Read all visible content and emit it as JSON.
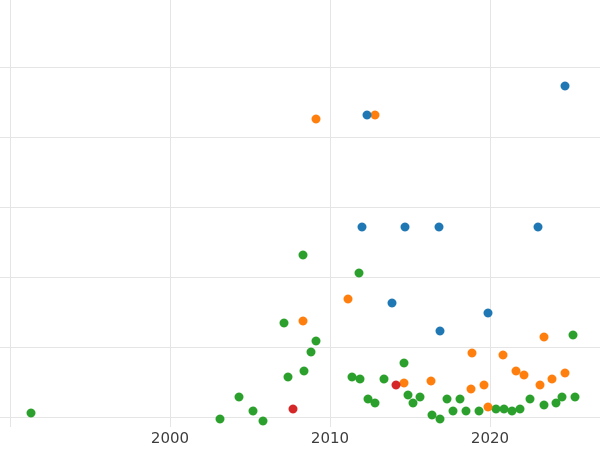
{
  "chart_data": {
    "type": "scatter",
    "title": "",
    "xlabel": "",
    "ylabel": "",
    "x_ticks": [
      2000,
      2010,
      2020
    ],
    "x_gridlines": [
      1990,
      2000,
      2010,
      2020
    ],
    "y_gridlines": [
      0,
      10,
      20,
      30,
      40,
      50
    ],
    "xlim": [
      1989.375,
      2026.875
    ],
    "ylim": [
      -1.43,
      59.57
    ],
    "grid": true,
    "legend": "none",
    "style": {
      "background_color": "#ffffff",
      "grid_color": "#e5e5e5",
      "tick_label_color": "#3d3d3d"
    },
    "series": [
      {
        "name": "green",
        "color": "#2ca02c",
        "points": [
          [
            1991.3,
            0.6
          ],
          [
            2003.1,
            -0.3
          ],
          [
            2004.3,
            2.9
          ],
          [
            2005.2,
            0.9
          ],
          [
            2005.8,
            -0.6
          ],
          [
            2007.1,
            13.4
          ],
          [
            2007.4,
            5.7
          ],
          [
            2008.3,
            23.1
          ],
          [
            2008.4,
            6.6
          ],
          [
            2008.8,
            9.3
          ],
          [
            2009.1,
            10.9
          ],
          [
            2011.4,
            5.7
          ],
          [
            2011.8,
            20.6
          ],
          [
            2011.9,
            5.4
          ],
          [
            2012.4,
            2.6
          ],
          [
            2012.8,
            2.0
          ],
          [
            2013.4,
            5.4
          ],
          [
            2014.6,
            7.7
          ],
          [
            2014.9,
            3.1
          ],
          [
            2015.2,
            2.0
          ],
          [
            2015.6,
            2.9
          ],
          [
            2016.4,
            0.3
          ],
          [
            2016.9,
            -0.3
          ],
          [
            2017.3,
            2.6
          ],
          [
            2017.7,
            0.9
          ],
          [
            2018.1,
            2.6
          ],
          [
            2018.5,
            0.9
          ],
          [
            2019.3,
            0.9
          ],
          [
            2020.4,
            1.1
          ],
          [
            2020.9,
            1.1
          ],
          [
            2021.4,
            0.9
          ],
          [
            2021.9,
            1.1
          ],
          [
            2022.5,
            2.6
          ],
          [
            2023.4,
            1.7
          ],
          [
            2024.1,
            2.0
          ],
          [
            2024.5,
            2.9
          ],
          [
            2025.2,
            11.7
          ],
          [
            2025.3,
            2.9
          ]
        ]
      },
      {
        "name": "orange",
        "color": "#ff7f0e",
        "points": [
          [
            2009.1,
            42.6
          ],
          [
            2012.8,
            43.1
          ],
          [
            2011.1,
            16.9
          ],
          [
            2008.3,
            13.7
          ],
          [
            2023.4,
            11.4
          ],
          [
            2018.9,
            9.1
          ],
          [
            2020.8,
            8.9
          ],
          [
            2021.6,
            6.6
          ],
          [
            2024.7,
            6.3
          ],
          [
            2022.1,
            6.0
          ],
          [
            2023.9,
            5.4
          ],
          [
            2016.3,
            5.1
          ],
          [
            2014.6,
            4.9
          ],
          [
            2019.6,
            4.6
          ],
          [
            2023.1,
            4.6
          ],
          [
            2018.8,
            4.0
          ],
          [
            2019.9,
            1.4
          ]
        ]
      },
      {
        "name": "red",
        "color": "#d62728",
        "points": [
          [
            2007.7,
            1.1
          ],
          [
            2014.1,
            4.6
          ]
        ]
      },
      {
        "name": "blue",
        "color": "#1f77b4",
        "points": [
          [
            2024.7,
            47.3
          ],
          [
            2012.3,
            43.1
          ],
          [
            2012.0,
            27.1
          ],
          [
            2014.7,
            27.1
          ],
          [
            2016.8,
            27.1
          ],
          [
            2023.0,
            27.1
          ],
          [
            2013.9,
            16.3
          ],
          [
            2019.9,
            14.9
          ],
          [
            2016.9,
            12.3
          ]
        ]
      }
    ]
  }
}
